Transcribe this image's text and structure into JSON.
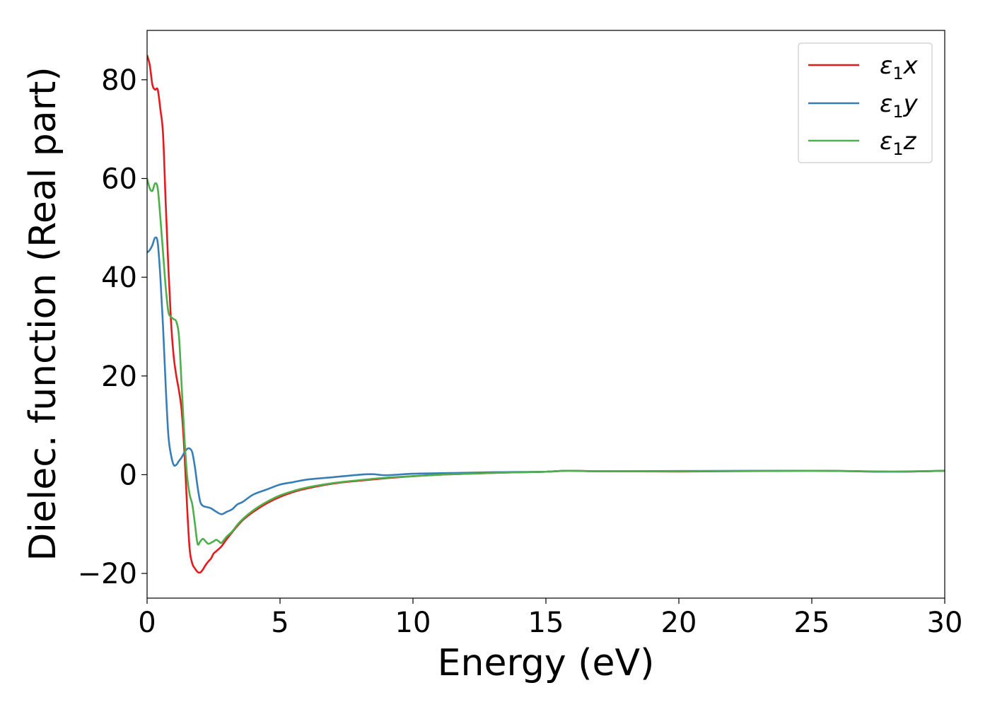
{
  "chart_data": {
    "type": "line",
    "title": "",
    "xlabel": "Energy (eV)",
    "ylabel": "Dielec. function (Real part)",
    "xlim": [
      0,
      30
    ],
    "ylim": [
      -25,
      90
    ],
    "xticks": [
      0,
      5,
      10,
      15,
      20,
      25,
      30
    ],
    "xtick_labels": [
      "0",
      "5",
      "10",
      "15",
      "20",
      "25",
      "30"
    ],
    "yticks": [
      -20,
      0,
      20,
      40,
      60,
      80
    ],
    "ytick_labels": [
      "−20",
      "0",
      "20",
      "40",
      "60",
      "80"
    ],
    "grid": false,
    "legend_position": "top-right",
    "series": [
      {
        "name": "x",
        "color": "#e41a1c",
        "x": [
          0,
          0.1,
          0.2,
          0.3,
          0.4,
          0.5,
          0.6,
          0.7,
          0.8,
          0.9,
          1.0,
          1.1,
          1.2,
          1.3,
          1.4,
          1.5,
          1.6,
          1.7,
          1.8,
          1.9,
          2.0,
          2.1,
          2.2,
          2.3,
          2.4,
          2.5,
          2.6,
          2.8,
          3.0,
          3.3,
          3.6,
          4.0,
          4.5,
          5.0,
          5.5,
          6.0,
          7.0,
          8.0,
          9.0,
          10.0,
          11.0,
          12.0,
          13.0,
          14.0,
          15.0,
          15.8,
          17.0,
          20.0,
          25.0,
          28.0,
          30.0
        ],
        "y": [
          85,
          83,
          79,
          78,
          78,
          74,
          69,
          55,
          42,
          31,
          24,
          20,
          17,
          13,
          5,
          -6,
          -15,
          -18,
          -19,
          -19.7,
          -19.8,
          -19.2,
          -18.3,
          -17.6,
          -17.0,
          -16.0,
          -15.5,
          -14.5,
          -13.0,
          -11.0,
          -9.2,
          -7.5,
          -5.8,
          -4.5,
          -3.5,
          -2.8,
          -1.8,
          -1.2,
          -0.7,
          -0.3,
          0.0,
          0.2,
          0.35,
          0.5,
          0.6,
          0.8,
          0.7,
          0.65,
          0.8,
          0.6,
          0.8
        ]
      },
      {
        "name": "y",
        "color": "#377eb8",
        "x": [
          0,
          0.1,
          0.2,
          0.3,
          0.4,
          0.5,
          0.6,
          0.7,
          0.8,
          0.9,
          1.0,
          1.1,
          1.2,
          1.3,
          1.4,
          1.5,
          1.6,
          1.7,
          1.8,
          1.9,
          2.0,
          2.1,
          2.2,
          2.4,
          2.6,
          2.8,
          3.0,
          3.2,
          3.4,
          3.6,
          4.0,
          4.5,
          5.0,
          5.5,
          6.0,
          7.0,
          8.0,
          8.5,
          9.0,
          10.0,
          11.0,
          12.0,
          13.0,
          14.0,
          15.0,
          15.8,
          17.0,
          20.0,
          25.0,
          28.0,
          30.0
        ],
        "y": [
          45,
          45.5,
          46.5,
          48,
          47,
          40,
          30,
          18,
          8,
          4,
          2,
          2,
          2.8,
          3.5,
          4.5,
          5.2,
          5.3,
          4.5,
          1.5,
          -2.5,
          -5.5,
          -6.3,
          -6.5,
          -6.8,
          -7.5,
          -8.0,
          -7.5,
          -7.0,
          -6.0,
          -5.5,
          -4.0,
          -3.0,
          -2.0,
          -1.5,
          -1.0,
          -0.5,
          0.0,
          0.1,
          -0.1,
          0.2,
          0.3,
          0.4,
          0.5,
          0.55,
          0.6,
          0.8,
          0.7,
          0.75,
          0.8,
          0.6,
          0.8
        ]
      },
      {
        "name": "z",
        "color": "#4daf4a",
        "x": [
          0,
          0.1,
          0.2,
          0.3,
          0.4,
          0.5,
          0.6,
          0.7,
          0.8,
          0.9,
          1.0,
          1.1,
          1.2,
          1.3,
          1.4,
          1.5,
          1.6,
          1.7,
          1.8,
          1.9,
          2.0,
          2.1,
          2.2,
          2.3,
          2.4,
          2.5,
          2.6,
          2.7,
          2.8,
          3.0,
          3.2,
          3.5,
          4.0,
          4.5,
          5.0,
          5.5,
          6.0,
          7.0,
          8.0,
          9.0,
          10.0,
          11.0,
          12.0,
          13.0,
          14.0,
          15.0,
          15.8,
          17.0,
          20.0,
          25.0,
          28.0,
          30.0
        ],
        "y": [
          60,
          58,
          57.5,
          59,
          58,
          52,
          45,
          38,
          33,
          32,
          31.5,
          31,
          28,
          18,
          8,
          0,
          -4,
          -6,
          -10,
          -14,
          -13.5,
          -13.0,
          -13.5,
          -14.0,
          -13.8,
          -13.5,
          -13.2,
          -13.5,
          -13.8,
          -12.5,
          -11.5,
          -9.5,
          -7.2,
          -5.5,
          -4.2,
          -3.3,
          -2.6,
          -1.7,
          -1.1,
          -0.6,
          -0.3,
          0.0,
          0.2,
          0.35,
          0.5,
          0.6,
          0.8,
          0.7,
          0.7,
          0.8,
          0.65,
          0.8
        ]
      }
    ],
    "legend": {
      "entries": [
        {
          "prefix": "ε",
          "sub": "1",
          "suffix": "x"
        },
        {
          "prefix": "ε",
          "sub": "1",
          "suffix": "y"
        },
        {
          "prefix": "ε",
          "sub": "1",
          "suffix": "z"
        }
      ]
    }
  }
}
